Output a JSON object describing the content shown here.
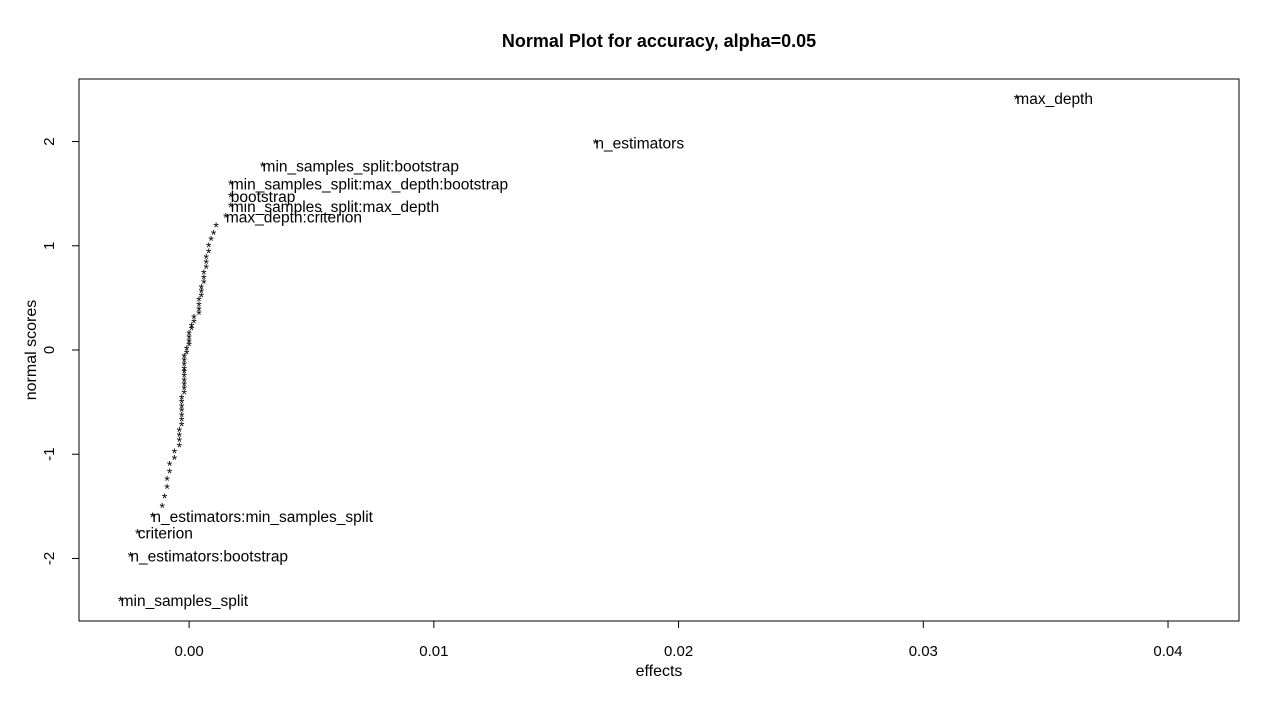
{
  "chart_data": {
    "type": "scatter",
    "title": "Normal Plot for accuracy, alpha=0.05",
    "xlabel": "effects",
    "ylabel": "normal scores",
    "xlim": [
      -0.0045,
      0.0429
    ],
    "ylim": [
      -2.6,
      2.6
    ],
    "x_ticks": [
      0.0,
      0.01,
      0.02,
      0.03,
      0.04
    ],
    "x_tick_labels": [
      "0.00",
      "0.01",
      "0.02",
      "0.03",
      "0.04"
    ],
    "y_ticks": [
      -2,
      -1,
      0,
      1,
      2
    ],
    "y_tick_labels": [
      "-2",
      "-1",
      "0",
      "1",
      "2"
    ],
    "marker": "*",
    "grid": false,
    "labeled_points": [
      {
        "label": "min_samples_split",
        "x": -0.0028,
        "y": -2.41
      },
      {
        "label": "n_estimators:bootstrap",
        "x": -0.0024,
        "y": -1.98
      },
      {
        "label": "criterion",
        "x": -0.0021,
        "y": -1.76
      },
      {
        "label": "n_estimators:min_samples_split",
        "x": -0.0015,
        "y": -1.6
      },
      {
        "label": "max_depth:criterion",
        "x": 0.0015,
        "y": 1.27
      },
      {
        "label": "min_samples_split:max_depth",
        "x": 0.0017,
        "y": 1.37
      },
      {
        "label": "bootstrap",
        "x": 0.0017,
        "y": 1.47
      },
      {
        "label": "min_samples_split:max_depth:bootstrap",
        "x": 0.0017,
        "y": 1.59
      },
      {
        "label": "min_samples_split:bootstrap",
        "x": 0.003,
        "y": 1.76
      },
      {
        "label": "n_estimators",
        "x": 0.0166,
        "y": 1.98
      },
      {
        "label": "max_depth",
        "x": 0.0338,
        "y": 2.41
      }
    ],
    "points": [
      {
        "x": -0.0011,
        "y": -1.51
      },
      {
        "x": -0.001,
        "y": -1.42
      },
      {
        "x": -0.0009,
        "y": -1.33
      },
      {
        "x": -0.0009,
        "y": -1.25
      },
      {
        "x": -0.0008,
        "y": -1.18
      },
      {
        "x": -0.0008,
        "y": -1.11
      },
      {
        "x": -0.0006,
        "y": -1.05
      },
      {
        "x": -0.0006,
        "y": -0.99
      },
      {
        "x": -0.0004,
        "y": -0.93
      },
      {
        "x": -0.0004,
        "y": -0.88
      },
      {
        "x": -0.0004,
        "y": -0.83
      },
      {
        "x": -0.0004,
        "y": -0.78
      },
      {
        "x": -0.0003,
        "y": -0.73
      },
      {
        "x": -0.0003,
        "y": -0.68
      },
      {
        "x": -0.0003,
        "y": -0.64
      },
      {
        "x": -0.0003,
        "y": -0.59
      },
      {
        "x": -0.0003,
        "y": -0.55
      },
      {
        "x": -0.0003,
        "y": -0.51
      },
      {
        "x": -0.0003,
        "y": -0.47
      },
      {
        "x": -0.0002,
        "y": -0.42
      },
      {
        "x": -0.0002,
        "y": -0.38
      },
      {
        "x": -0.0002,
        "y": -0.34
      },
      {
        "x": -0.0002,
        "y": -0.3
      },
      {
        "x": -0.0002,
        "y": -0.26
      },
      {
        "x": -0.0002,
        "y": -0.22
      },
      {
        "x": -0.0002,
        "y": -0.19
      },
      {
        "x": -0.0002,
        "y": -0.15
      },
      {
        "x": -0.0002,
        "y": -0.11
      },
      {
        "x": -0.0002,
        "y": -0.07
      },
      {
        "x": -0.0001,
        "y": -0.04
      },
      {
        "x": -0.0001,
        "y": 0.0
      },
      {
        "x": 0.0,
        "y": 0.04
      },
      {
        "x": 0.0,
        "y": 0.07
      },
      {
        "x": 0.0,
        "y": 0.11
      },
      {
        "x": 0.0,
        "y": 0.15
      },
      {
        "x": 0.0001,
        "y": 0.19
      },
      {
        "x": 0.0001,
        "y": 0.22
      },
      {
        "x": 0.0002,
        "y": 0.26
      },
      {
        "x": 0.0002,
        "y": 0.3
      },
      {
        "x": 0.0004,
        "y": 0.34
      },
      {
        "x": 0.0004,
        "y": 0.38
      },
      {
        "x": 0.0004,
        "y": 0.42
      },
      {
        "x": 0.0004,
        "y": 0.47
      },
      {
        "x": 0.0005,
        "y": 0.51
      },
      {
        "x": 0.0005,
        "y": 0.55
      },
      {
        "x": 0.0005,
        "y": 0.59
      },
      {
        "x": 0.0006,
        "y": 0.64
      },
      {
        "x": 0.0006,
        "y": 0.68
      },
      {
        "x": 0.0006,
        "y": 0.73
      },
      {
        "x": 0.0007,
        "y": 0.78
      },
      {
        "x": 0.0007,
        "y": 0.83
      },
      {
        "x": 0.0007,
        "y": 0.88
      },
      {
        "x": 0.0008,
        "y": 0.93
      },
      {
        "x": 0.0008,
        "y": 0.99
      },
      {
        "x": 0.0009,
        "y": 1.05
      },
      {
        "x": 0.001,
        "y": 1.11
      },
      {
        "x": 0.0011,
        "y": 1.18
      }
    ]
  }
}
